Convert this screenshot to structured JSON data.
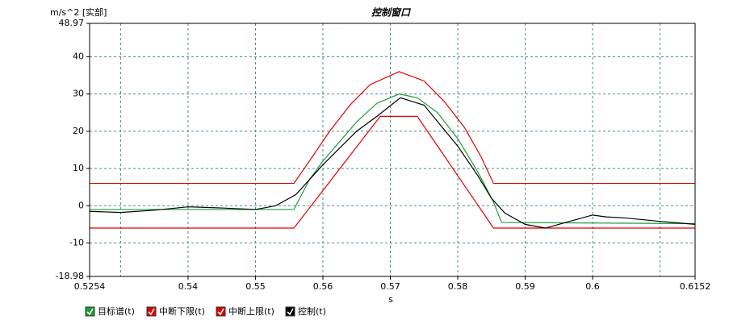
{
  "chart_data": {
    "type": "line",
    "title": "控制窗口",
    "ylabel": "m/s^2 [实部]",
    "xlabel": "s",
    "xlim": [
      0.5254,
      0.6152
    ],
    "ylim": [
      -18.98,
      48.97
    ],
    "xticks": [
      0.5254,
      0.54,
      0.55,
      0.56,
      0.57,
      0.58,
      0.59,
      0.6,
      0.6152
    ],
    "xgrid": [
      0.53,
      0.54,
      0.55,
      0.56,
      0.57,
      0.58,
      0.59,
      0.6,
      0.61
    ],
    "yticks": [
      -18.98,
      -10,
      0,
      10,
      20,
      30,
      40,
      48.97
    ],
    "ygrid": [
      -10,
      0,
      10,
      20,
      30,
      40
    ],
    "grid": true,
    "series": [
      {
        "name": "目标谱(t)",
        "color": "#1a9e3a",
        "x": [
          0.5254,
          0.5557,
          0.558,
          0.56,
          0.565,
          0.568,
          0.5713,
          0.574,
          0.577,
          0.58,
          0.583,
          0.5853,
          0.5865,
          0.6152
        ],
        "values": [
          -1,
          -1,
          7,
          12,
          22.5,
          27.5,
          30,
          29,
          25,
          18,
          9,
          1,
          -4.5,
          -4.8
        ]
      },
      {
        "name": "中断下限(t)",
        "color": "#e00000",
        "x": [
          0.5254,
          0.5557,
          0.5685,
          0.574,
          0.5853,
          0.6152
        ],
        "values": [
          -6,
          -6,
          24,
          24,
          -6,
          -6
        ]
      },
      {
        "name": "中断上限(t)",
        "color": "#e00000",
        "x": [
          0.5254,
          0.5557,
          0.558,
          0.561,
          0.564,
          0.567,
          0.5713,
          0.575,
          0.578,
          0.581,
          0.5835,
          0.5853,
          0.6152
        ],
        "values": [
          6,
          6,
          12,
          20,
          27,
          32.5,
          36,
          33.5,
          28,
          21,
          13,
          6,
          6
        ]
      },
      {
        "name": "控制(t)",
        "color": "#000000",
        "x": [
          0.5254,
          0.53,
          0.535,
          0.54,
          0.545,
          0.55,
          0.553,
          0.556,
          0.558,
          0.56,
          0.565,
          0.568,
          0.5715,
          0.575,
          0.58,
          0.583,
          0.585,
          0.587,
          0.59,
          0.593,
          0.596,
          0.6,
          0.602,
          0.605,
          0.61,
          0.6152
        ],
        "values": [
          -1.5,
          -1.8,
          -1.2,
          -0.3,
          -0.6,
          -1,
          0,
          3,
          7,
          11,
          20,
          24,
          29,
          27,
          16,
          8,
          2,
          -2,
          -5,
          -6,
          -4.5,
          -2.5,
          -3,
          -3.3,
          -4.2,
          -5
        ]
      }
    ]
  }
}
